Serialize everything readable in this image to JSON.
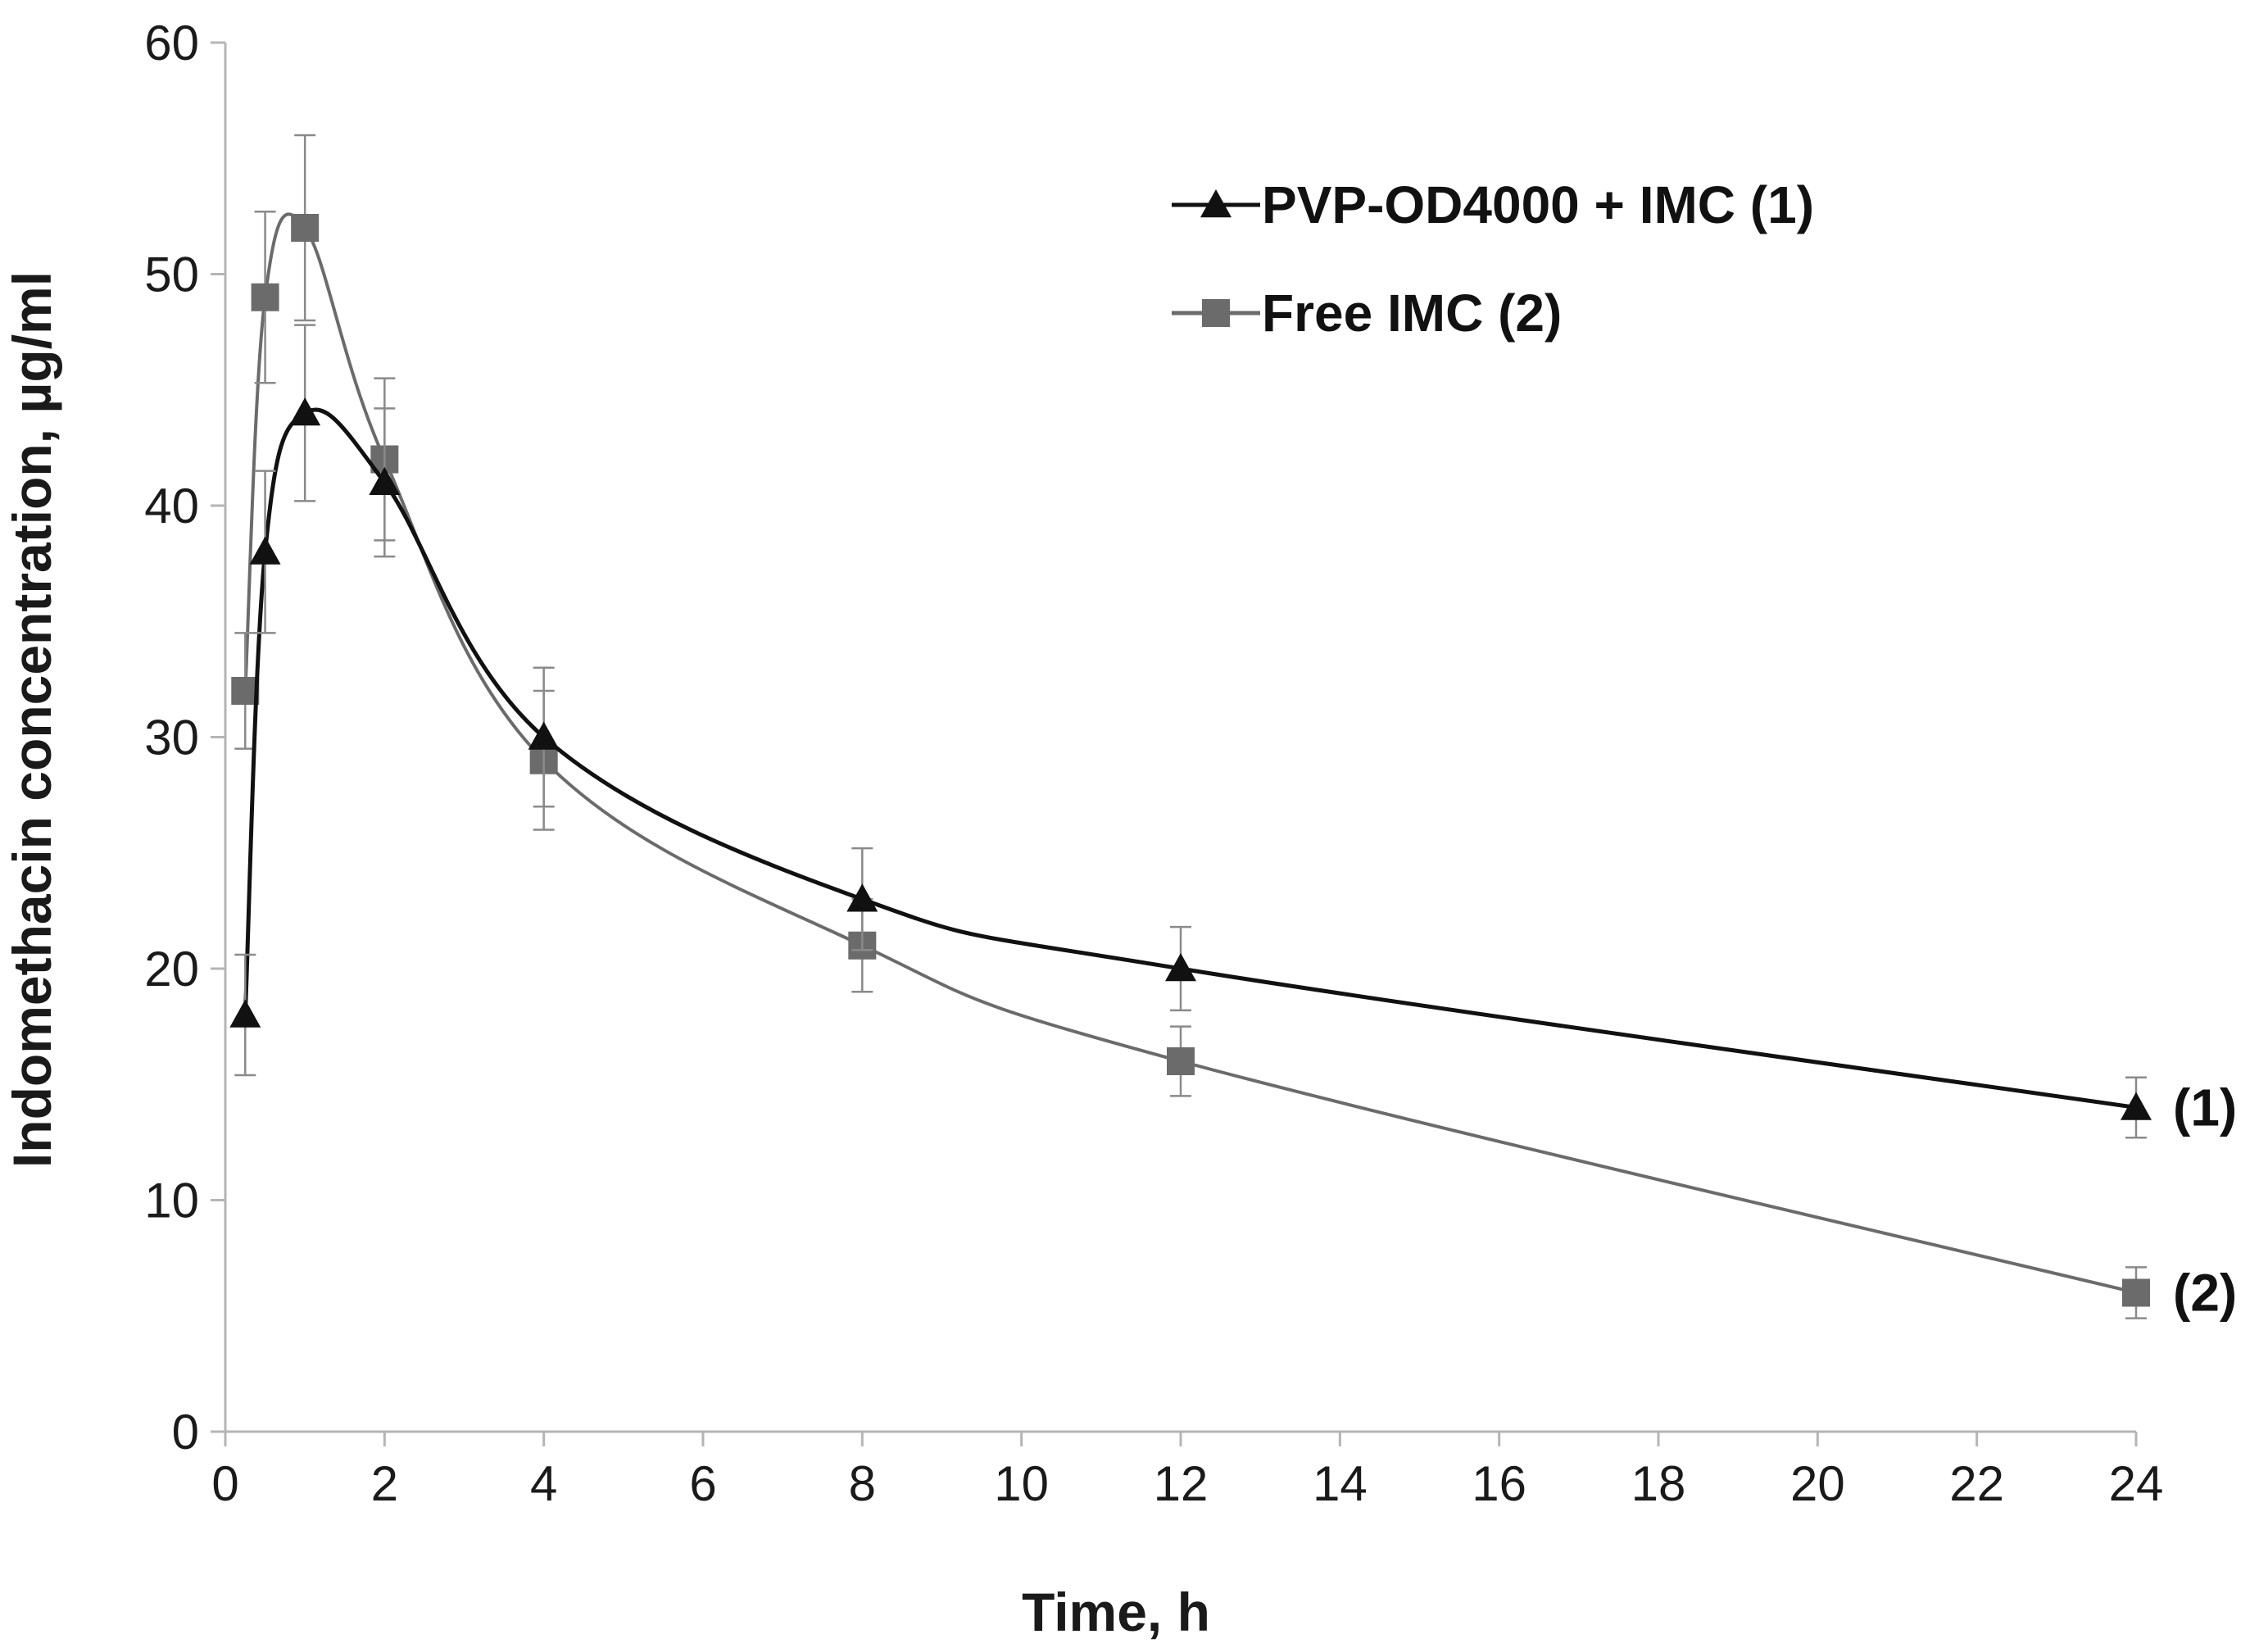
{
  "chart_data": {
    "type": "line",
    "title": "",
    "xlabel": "Time, h",
    "ylabel": "Indomethacin concentration, µg/ml",
    "xlim": [
      0,
      24
    ],
    "ylim": [
      0,
      60
    ],
    "x_ticks": [
      "0",
      "2",
      "4",
      "6",
      "8",
      "10",
      "12",
      "14",
      "16",
      "18",
      "20",
      "22",
      "24"
    ],
    "y_ticks": [
      "0",
      "10",
      "20",
      "30",
      "40",
      "50",
      "60"
    ],
    "grid": false,
    "legend_position": "top-right",
    "series": [
      {
        "name": "PVP-OD4000 + IMC (1)",
        "end_label": "(1)",
        "marker": "triangle",
        "color": "#111111",
        "x": [
          0.25,
          0.5,
          1,
          2,
          4,
          8,
          12,
          24
        ],
        "y": [
          18,
          38,
          44,
          41,
          30,
          23,
          20,
          14
        ],
        "error": [
          2.6,
          3.5,
          3.8,
          3.2,
          3.0,
          2.2,
          1.8,
          1.3
        ]
      },
      {
        "name": "Free IMC (2)",
        "end_label": "(2)",
        "marker": "square",
        "color": "#6b6b6b",
        "x": [
          0.25,
          0.5,
          1,
          2,
          4,
          8,
          12,
          24
        ],
        "y": [
          32,
          49,
          52,
          42,
          29,
          21,
          16,
          6
        ],
        "error": [
          2.5,
          3.7,
          4.0,
          3.5,
          3.0,
          2.0,
          1.5,
          1.1
        ]
      }
    ]
  }
}
